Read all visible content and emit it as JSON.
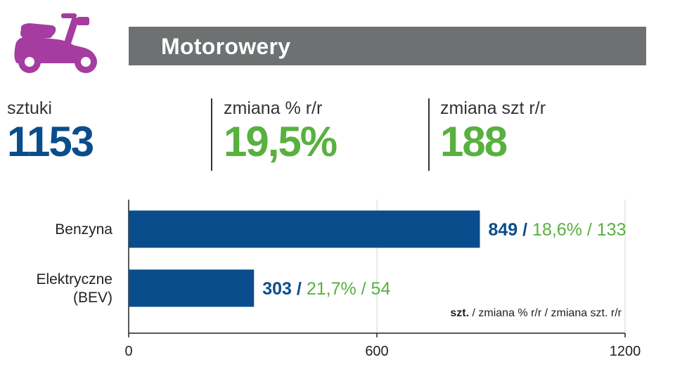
{
  "header": {
    "title": "Motorowery",
    "icon": "scooter-icon",
    "icon_color": "#a43d9f"
  },
  "kpis": [
    {
      "label": "sztuki",
      "value": "1153",
      "color": "#0a4d8c"
    },
    {
      "label": "zmiana % r/r",
      "value": "19,5%",
      "color": "#58b13f"
    },
    {
      "label": "zmiana szt r/r",
      "value": "188",
      "color": "#58b13f"
    }
  ],
  "chart_data": {
    "type": "bar",
    "orientation": "horizontal",
    "categories": [
      "Benzyna",
      "Elektryczne (BEV)"
    ],
    "values": [
      849,
      303
    ],
    "value_labels": [
      "849",
      "303"
    ],
    "pct_labels": [
      "18,6%",
      "21,7%"
    ],
    "diff_labels": [
      "133",
      "54"
    ],
    "xlim": [
      0,
      1200
    ],
    "xticks": [
      "0",
      "600",
      "1200"
    ],
    "grid": true,
    "legend": {
      "bold": "szt.",
      "rest": " / zmiana % r/r / zmiana szt. r/r"
    },
    "bar_color": "#0a4d8c",
    "pct_color": "#58b13f"
  }
}
